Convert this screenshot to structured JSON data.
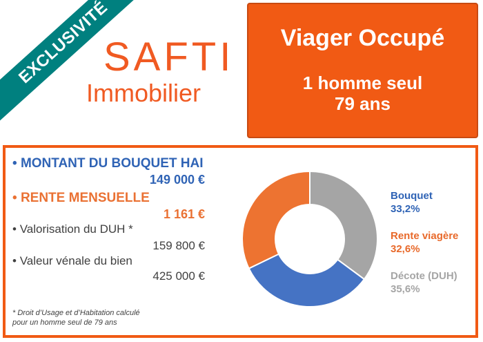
{
  "badge": "EXCLUSIVITÉ",
  "brand": {
    "name": "SAFTI",
    "tagline": "Immobilier"
  },
  "offer": {
    "title": "Viager Occupé",
    "line1": "1 homme seul",
    "line2": "79 ans"
  },
  "details": [
    {
      "label": "MONTANT DU BOUQUET HAI",
      "value": "149 000 €"
    },
    {
      "label": "RENTE MENSUELLE",
      "value": "1 161 €"
    },
    {
      "label": "Valorisation du DUH *",
      "value": "159 800 €"
    },
    {
      "label": "Valeur vénale du bien",
      "value": "425 000 €"
    }
  ],
  "footnote": {
    "line1": "* Droit d’Usage et d’Habitation calculé",
    "line2": "pour un homme seul de 79 ans"
  },
  "chart_data": {
    "type": "pie",
    "donut": true,
    "categories": [
      "Bouquet",
      "Rente viagère",
      "Décote (DUH)"
    ],
    "values": [
      33.2,
      32.6,
      35.6
    ],
    "value_labels": [
      "33,2%",
      "32,6%",
      "35,6%"
    ],
    "colors": [
      "#4573c4",
      "#ed7331",
      "#a5a5a5"
    ],
    "legend_position": "right"
  }
}
